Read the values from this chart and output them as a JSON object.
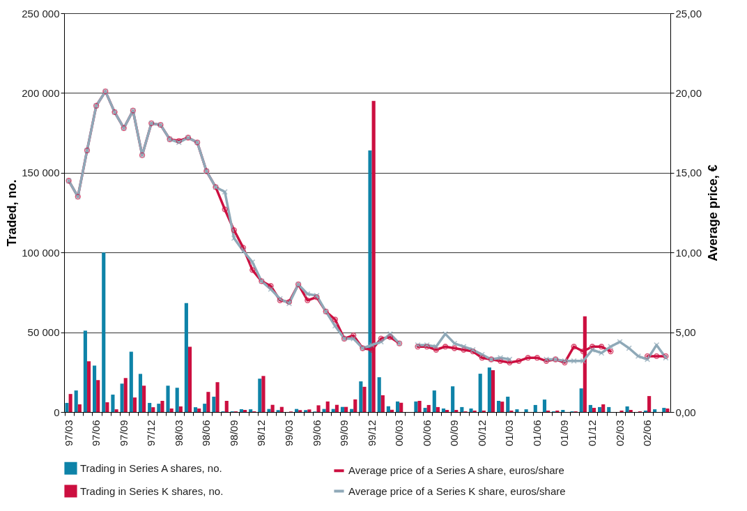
{
  "chart_data": {
    "type": "bar",
    "xlabel": null,
    "ylabel": "Traded, no.",
    "y2label": "Average price, €",
    "categories": [
      "97/03",
      null,
      null,
      "97/06",
      null,
      null,
      "97/09",
      null,
      null,
      "97/12",
      null,
      null,
      "98/03",
      null,
      null,
      "98/06",
      null,
      null,
      "98/09",
      null,
      null,
      "98/12",
      null,
      null,
      "99/03",
      null,
      null,
      "99/06",
      null,
      null,
      "99/09",
      null,
      null,
      "99/12",
      null,
      null,
      "00/03",
      null,
      null,
      "00/06",
      null,
      null,
      "00/09",
      null,
      null,
      "00/12",
      null,
      null,
      "01/03",
      null,
      null,
      "01/06",
      null,
      null,
      "01/09",
      null,
      null,
      "01/12",
      null,
      null,
      "02/03",
      null,
      null,
      "02/06",
      null,
      null
    ],
    "series": [
      {
        "name": "Trading in Series A shares, no.",
        "type": "bar",
        "color": "#0e83a8",
        "values": [
          5700,
          13500,
          51000,
          29100,
          100000,
          10900,
          17800,
          37800,
          23900,
          5700,
          5200,
          16500,
          15200,
          68300,
          3000,
          5200,
          9600,
          400,
          400,
          1700,
          1700,
          20900,
          1900,
          1200,
          0,
          1900,
          1200,
          300,
          1900,
          1900,
          3200,
          1900,
          19200,
          164000,
          21800,
          3600,
          6600,
          null,
          6600,
          2600,
          13500,
          2200,
          16100,
          3100,
          2200,
          24000,
          27900,
          7000,
          9600,
          1700,
          1700,
          4400,
          7800,
          400,
          1300,
          400,
          14800,
          4400,
          3100,
          3100,
          0,
          3500,
          0,
          900,
          1700,
          2600
        ]
      },
      {
        "name": "Trading in Series K shares, no.",
        "type": "bar",
        "color": "#cc0f40",
        "values": [
          11300,
          4800,
          31800,
          20000,
          6100,
          1700,
          21300,
          9100,
          16500,
          3000,
          7000,
          2200,
          3500,
          40900,
          2200,
          12600,
          18700,
          7000,
          400,
          1300,
          400,
          22600,
          4500,
          3200,
          300,
          1200,
          1600,
          4200,
          6600,
          4500,
          3200,
          7900,
          15800,
          195000,
          10500,
          1400,
          5800,
          null,
          7000,
          4400,
          3100,
          1300,
          1300,
          400,
          900,
          900,
          26200,
          6500,
          900,
          0,
          0,
          0,
          900,
          900,
          0,
          400,
          60000,
          2600,
          4800,
          0,
          900,
          1300,
          400,
          10000,
          0,
          2200
        ]
      },
      {
        "name": "Average price of a Series A share, euros/share",
        "type": "line",
        "axis": "y2",
        "marker": "circle",
        "color": "#cc0f40",
        "values": [
          14.5,
          13.5,
          16.4,
          19.2,
          20.1,
          18.8,
          17.8,
          18.9,
          16.1,
          18.1,
          18.0,
          17.1,
          17.0,
          17.2,
          16.9,
          15.1,
          14.1,
          12.7,
          11.4,
          10.3,
          8.9,
          8.2,
          7.9,
          7.0,
          6.9,
          8.0,
          7.0,
          7.2,
          6.3,
          5.8,
          4.6,
          4.8,
          4.0,
          3.9,
          4.6,
          4.7,
          4.3,
          null,
          4.1,
          4.1,
          3.9,
          4.1,
          4.0,
          3.9,
          3.8,
          3.4,
          3.3,
          3.2,
          3.1,
          3.2,
          3.4,
          3.4,
          3.2,
          3.3,
          3.1,
          4.1,
          3.8,
          4.1,
          4.1,
          3.8,
          null,
          null,
          null,
          3.5,
          3.5,
          3.5
        ]
      },
      {
        "name": "Average price of a Series K share, euros/share",
        "type": "line",
        "axis": "y2",
        "marker": "cross",
        "color": "#8fa9b8",
        "values": [
          14.5,
          13.5,
          16.4,
          19.2,
          20.1,
          18.8,
          17.8,
          18.9,
          16.1,
          18.1,
          18.0,
          17.1,
          16.9,
          17.2,
          16.9,
          15.1,
          14.1,
          13.8,
          10.9,
          10.1,
          9.4,
          8.2,
          7.7,
          7.1,
          6.8,
          8.0,
          7.4,
          7.3,
          6.3,
          5.4,
          4.6,
          4.6,
          4.0,
          4.2,
          4.4,
          4.9,
          4.3,
          null,
          4.2,
          4.2,
          4.1,
          4.9,
          4.3,
          4.1,
          3.9,
          3.6,
          3.3,
          3.4,
          3.3,
          null,
          null,
          null,
          3.3,
          3.3,
          3.2,
          3.2,
          3.2,
          3.9,
          3.7,
          4.1,
          4.4,
          4.0,
          3.5,
          3.3,
          4.2,
          3.4
        ]
      }
    ],
    "ylim": [
      0,
      250000
    ],
    "yticks": [
      {
        "value": 0,
        "label": "0"
      },
      {
        "value": 50000,
        "label": "50 000"
      },
      {
        "value": 100000,
        "label": "100 000"
      },
      {
        "value": 150000,
        "label": "150 000"
      },
      {
        "value": 200000,
        "label": "200 000"
      },
      {
        "value": 250000,
        "label": "250 000"
      }
    ],
    "y2lim": [
      0,
      25
    ],
    "y2ticks": [
      {
        "value": 0,
        "label": "0,00"
      },
      {
        "value": 5,
        "label": "5,00"
      },
      {
        "value": 10,
        "label": "10,00"
      },
      {
        "value": 15,
        "label": "15,00"
      },
      {
        "value": 20,
        "label": "20,00"
      },
      {
        "value": 25,
        "label": "25,00"
      }
    ],
    "grid": "y",
    "legend": "bottom",
    "line_style": "solid"
  }
}
